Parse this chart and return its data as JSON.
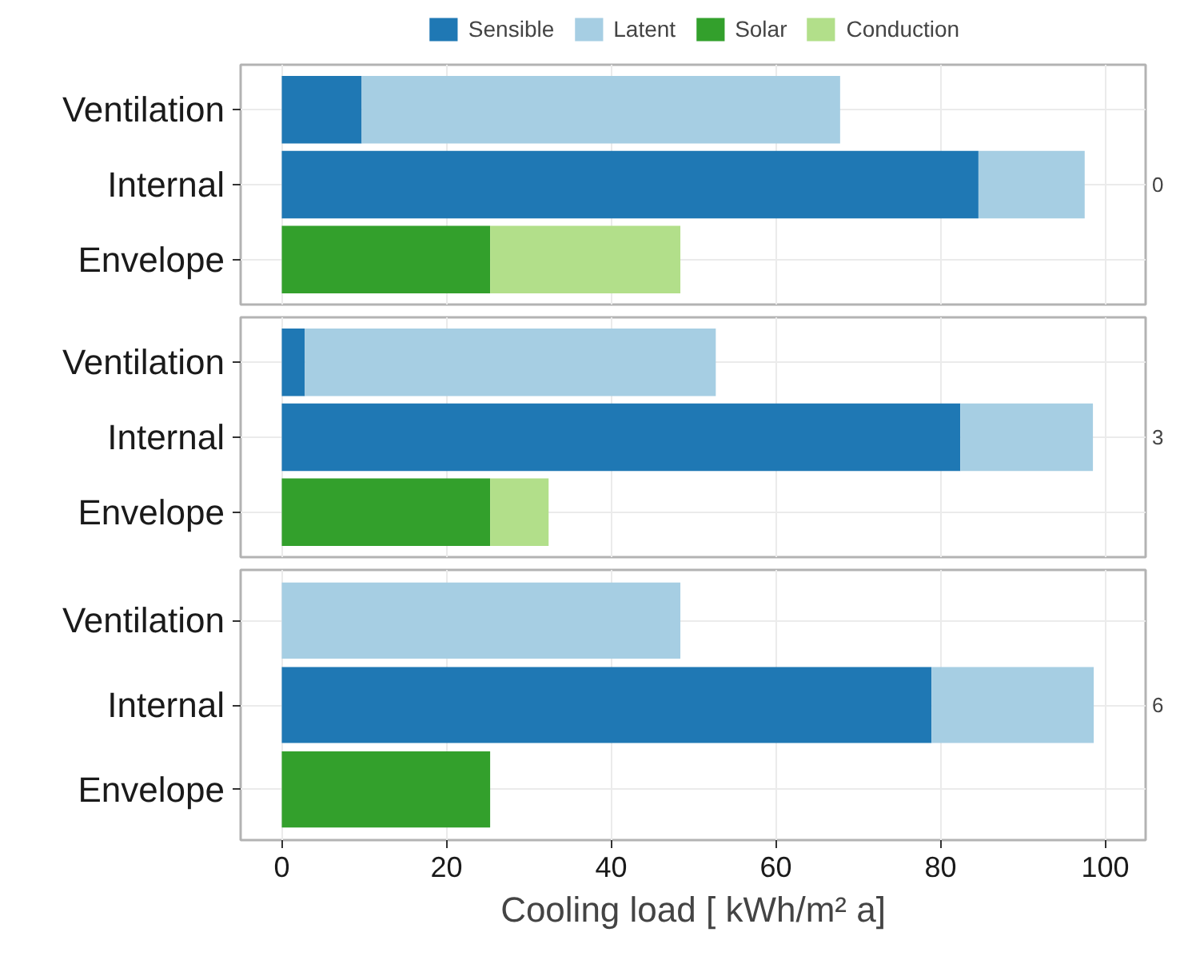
{
  "chart_data": [
    {
      "type": "bar",
      "orientation": "horizontal",
      "stacked": true,
      "categories": [
        "Ventilation",
        "Internal",
        "Envelope"
      ],
      "y2label": "0",
      "xlim": [
        -5,
        104.9
      ],
      "xticks": [
        0,
        20,
        40,
        60,
        80,
        100
      ],
      "grid": true,
      "legend": "top",
      "tick_labels": "y",
      "series": [
        {
          "name": "Sensible",
          "color": "#1f78b4",
          "values": [
            9.7,
            84.6,
            null
          ]
        },
        {
          "name": "Latent",
          "color": "#a6cee3",
          "values": [
            58.1,
            12.9,
            null
          ]
        },
        {
          "name": "Solar",
          "color": "#33a02c",
          "values": [
            null,
            null,
            25.3
          ]
        },
        {
          "name": "Conduction",
          "color": "#b2df8a",
          "values": [
            null,
            null,
            23.1
          ]
        }
      ]
    },
    {
      "type": "bar",
      "orientation": "horizontal",
      "stacked": true,
      "categories": [
        "Ventilation",
        "Internal",
        "Envelope"
      ],
      "y2label": "3",
      "xlim": [
        -5,
        104.9
      ],
      "xticks": [
        0,
        20,
        40,
        60,
        80,
        100
      ],
      "grid": true,
      "tick_labels": "y",
      "series": [
        {
          "color": "#1f78b4",
          "values": [
            2.8,
            82.4,
            null
          ]
        },
        {
          "color": "#a6cee3",
          "values": [
            49.9,
            16.1,
            null
          ]
        },
        {
          "color": "#33a02c",
          "values": [
            null,
            null,
            25.3
          ]
        },
        {
          "color": "#b2df8a",
          "values": [
            null,
            null,
            7.1
          ]
        }
      ]
    },
    {
      "type": "bar",
      "orientation": "horizontal",
      "stacked": true,
      "categories": [
        "Ventilation",
        "Internal",
        "Envelope"
      ],
      "y2label": "6",
      "xlabel": "Cooling load [ kWh/m² a]",
      "xlim": [
        -5,
        104.9
      ],
      "xticks": [
        0,
        20,
        40,
        60,
        80,
        100
      ],
      "grid": true,
      "series": [
        {
          "color": "#1f78b4",
          "values": [
            null,
            78.9,
            null
          ]
        },
        {
          "color": "#a6cee3",
          "values": [
            48.4,
            19.7,
            null
          ]
        },
        {
          "color": "#33a02c",
          "values": [
            null,
            null,
            25.3
          ]
        }
      ]
    }
  ]
}
